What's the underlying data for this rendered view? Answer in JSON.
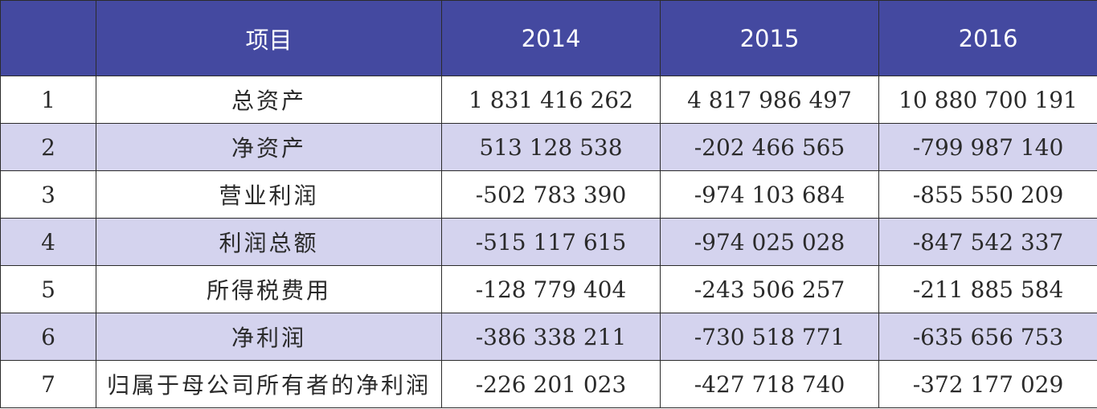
{
  "table": {
    "header": {
      "index": "",
      "item": "项目",
      "years": [
        "2014",
        "2015",
        "2016"
      ]
    },
    "rows": [
      {
        "index": "1",
        "item": "总资产",
        "values": [
          "1 831 416 262",
          "4 817 986 497",
          "10 880 700 191"
        ]
      },
      {
        "index": "2",
        "item": "净资产",
        "values": [
          "513 128 538",
          "-202 466 565",
          "-799 987 140"
        ]
      },
      {
        "index": "3",
        "item": "营业利润",
        "values": [
          "-502 783 390",
          "-974 103 684",
          "-855 550 209"
        ]
      },
      {
        "index": "4",
        "item": "利润总额",
        "values": [
          "-515 117 615",
          "-974 025 028",
          "-847 542 337"
        ]
      },
      {
        "index": "5",
        "item": "所得税费用",
        "values": [
          "-128 779 404",
          "-243 506 257",
          "-211 885 584"
        ]
      },
      {
        "index": "6",
        "item": "净利润",
        "values": [
          "-386 338 211",
          "-730 518 771",
          "-635 656 753"
        ]
      },
      {
        "index": "7",
        "item": "归属于母公司所有者的净利润",
        "values": [
          "-226 201 023",
          "-427 718 740",
          "-372 177 029"
        ]
      }
    ]
  },
  "colors": {
    "header_bg": "#4449a0",
    "header_text": "#ffffff",
    "row_alt_bg": "#d4d3ee",
    "row_bg": "#ffffff",
    "border": "#2b2b2b"
  }
}
